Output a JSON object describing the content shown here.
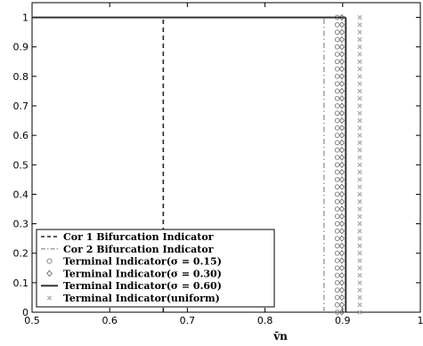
{
  "chart_data": {
    "type": "line",
    "title": "",
    "xlabel": "v̄n",
    "ylabel": "",
    "xlim": [
      0.5,
      1.0
    ],
    "ylim": [
      0,
      1.05
    ],
    "xticks": [
      0.5,
      0.6,
      0.7,
      0.8,
      0.9,
      1.0
    ],
    "xtick_labels": [
      "0.5",
      "0.6",
      "0.7",
      "0.8",
      "0.9",
      "1"
    ],
    "yticks": [
      0,
      0.1,
      0.2,
      0.3,
      0.4,
      0.5,
      0.6,
      0.7,
      0.8,
      0.9,
      1.0
    ],
    "ytick_labels": [
      "0",
      "0.1",
      "0.2",
      "0.3",
      "0.4",
      "0.5",
      "0.6",
      "0.7",
      "0.8",
      "0.9",
      "1"
    ],
    "grid": false,
    "legend_position": "bottom-left",
    "series": [
      {
        "name": "Cor 1 Bifurcation Indicator",
        "style": "dashed",
        "color": "#222222",
        "x_at": 0.669,
        "y": [
          0,
          1
        ],
        "segment_to_x_max": false
      },
      {
        "name": "Cor 2 Bifurcation Indicator",
        "style": "dashdot",
        "color": "#999999",
        "x_at": 0.876,
        "y": [
          0,
          1
        ],
        "segment_to_x_max": false
      },
      {
        "name": "Terminal Indicator(σ = 0.15)",
        "style": "circle-markers",
        "color": "#888888",
        "x_at": 0.893,
        "y": [
          0,
          1
        ],
        "segment_to_x_max": false
      },
      {
        "name": "Terminal Indicator(σ = 0.30)",
        "style": "diamond-markers",
        "color": "#777777",
        "x_at": 0.899,
        "y": [
          0,
          1
        ],
        "segment_to_x_max": false
      },
      {
        "name": "Terminal Indicator(σ = 0.60)",
        "style": "solid",
        "color": "#333333",
        "x_at": 0.904,
        "y": [
          0,
          1
        ],
        "segment_to_x_max": true
      },
      {
        "name": "Terminal Indicator(uniform)",
        "style": "x-markers",
        "color": "#aaaaaa",
        "x_at": 0.922,
        "y": [
          0,
          1
        ],
        "segment_to_x_max": false
      }
    ]
  }
}
